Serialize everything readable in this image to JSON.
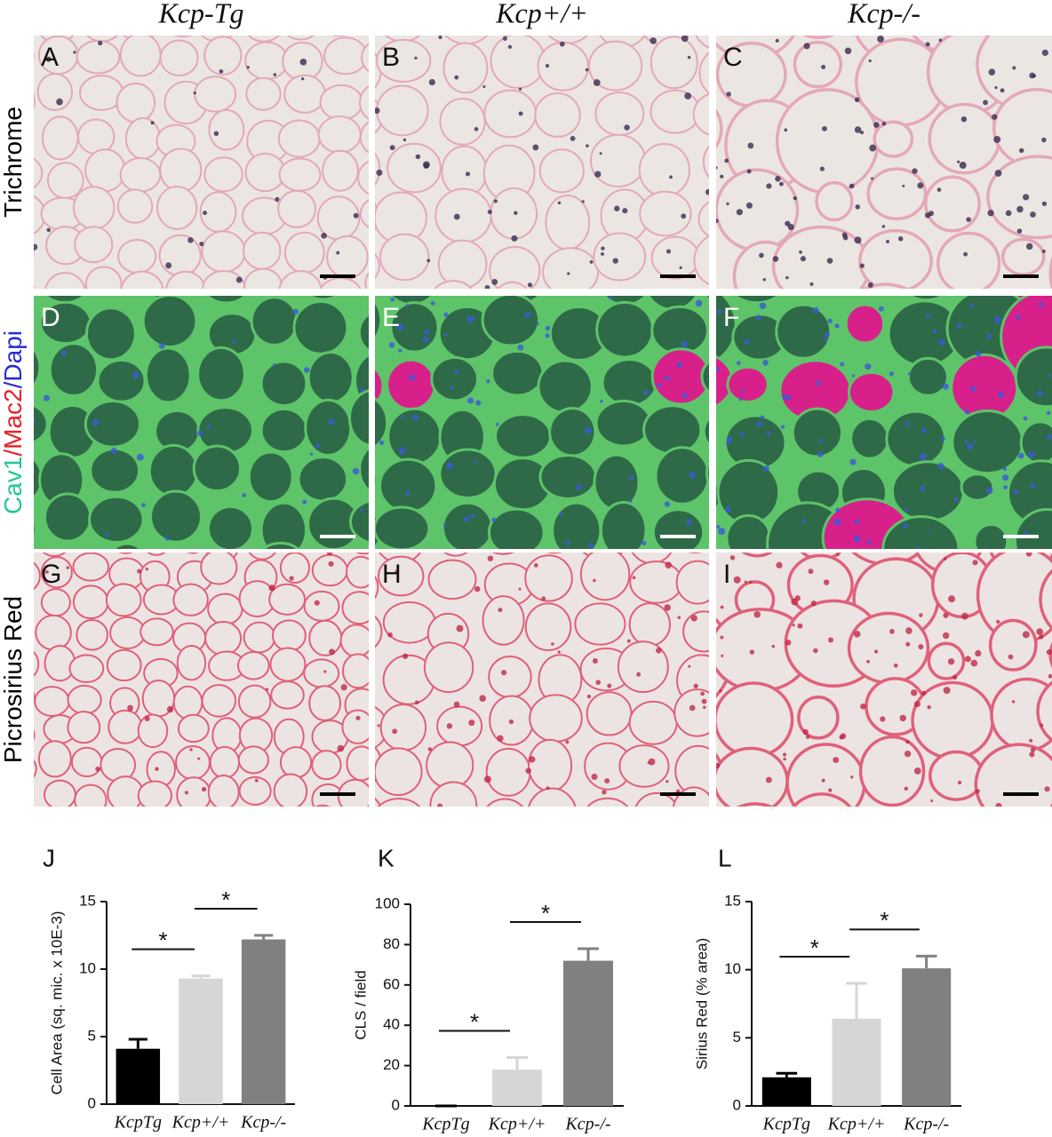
{
  "columns": [
    "Kcp-Tg",
    "Kcp+/+",
    "Kcp-/-"
  ],
  "rows": [
    {
      "label": [
        {
          "text": "Trichrome",
          "color": "#000000"
        }
      ]
    },
    {
      "label": [
        {
          "text": "Cav1",
          "color": "#20c997"
        },
        {
          "text": "/Mac2",
          "color": "#e8202a"
        },
        {
          "text": "/Dapi",
          "color": "#2a2ad0"
        }
      ]
    },
    {
      "label": [
        {
          "text": "Picrosirius Red",
          "color": "#000000"
        }
      ]
    }
  ],
  "panels": [
    [
      "A",
      "B",
      "C"
    ],
    [
      "D",
      "E",
      "F"
    ],
    [
      "G",
      "H",
      "I"
    ]
  ],
  "chart_data": [
    {
      "type": "bar",
      "panel": "J",
      "ylabel": "Cell Area (sq. mic. x 10E-3)",
      "categories": [
        "KcpTg",
        "Kcp+/+",
        "Kcp-/-"
      ],
      "values": [
        4.1,
        9.3,
        12.2
      ],
      "errors": [
        0.7,
        0.2,
        0.3
      ],
      "colors": [
        "#000000",
        "#d6d6d6",
        "#808080"
      ],
      "ylim": [
        0,
        15
      ],
      "yticks": [
        0,
        5,
        10,
        15
      ],
      "annotations": [
        {
          "label": "*",
          "between": [
            "KcpTg",
            "Kcp+/+"
          ]
        },
        {
          "label": "*",
          "between": [
            "Kcp+/+",
            "Kcp-/-"
          ]
        }
      ]
    },
    {
      "type": "bar",
      "panel": "K",
      "ylabel": "CLS / field",
      "categories": [
        "KcpTg",
        "Kcp+/+",
        "Kcp-/-"
      ],
      "values": [
        0,
        18,
        72
      ],
      "errors": [
        0,
        6,
        6
      ],
      "colors": [
        "#000000",
        "#d6d6d6",
        "#808080"
      ],
      "ylim": [
        0,
        100
      ],
      "yticks": [
        0,
        20,
        40,
        60,
        80,
        100
      ],
      "annotations": [
        {
          "label": "*",
          "between": [
            "KcpTg",
            "Kcp+/+"
          ]
        },
        {
          "label": "*",
          "between": [
            "Kcp+/+",
            "Kcp-/-"
          ]
        }
      ]
    },
    {
      "type": "bar",
      "panel": "L",
      "ylabel": "Sirius Red (% area)",
      "categories": [
        "KcpTg",
        "Kcp+/+",
        "Kcp-/-"
      ],
      "values": [
        2.1,
        6.4,
        10.1
      ],
      "errors": [
        0.3,
        2.6,
        0.9
      ],
      "colors": [
        "#000000",
        "#d6d6d6",
        "#808080"
      ],
      "ylim": [
        0,
        15
      ],
      "yticks": [
        0,
        5,
        10,
        15
      ],
      "annotations": [
        {
          "label": "*",
          "between": [
            "KcpTg",
            "Kcp+/+"
          ]
        },
        {
          "label": "*",
          "between": [
            "Kcp+/+",
            "Kcp-/-"
          ]
        }
      ]
    }
  ]
}
